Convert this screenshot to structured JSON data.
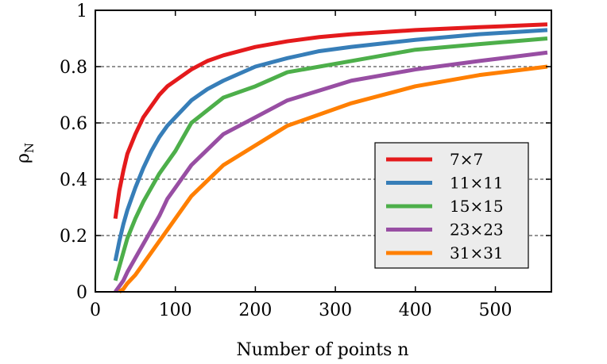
{
  "chart_data": {
    "type": "line",
    "title": "",
    "xlabel": "Number of points n",
    "ylabel_main": "ρ",
    "ylabel_sub": "N",
    "xlim": [
      0,
      570
    ],
    "ylim": [
      0,
      1
    ],
    "xticks": [
      "0",
      "100",
      "200",
      "300",
      "400",
      "500"
    ],
    "xtick_values": [
      0,
      100,
      200,
      300,
      400,
      500
    ],
    "yticks": [
      "0",
      "0.2",
      "0.4",
      "0.6",
      "0.8",
      "1"
    ],
    "ytick_values": [
      0,
      0.2,
      0.4,
      0.6,
      0.8,
      1
    ],
    "grid": "horizontal dashed",
    "legend_position": "lower-right",
    "series": [
      {
        "name": "7×7",
        "color": "#e41a1c",
        "x": [
          25,
          30,
          35,
          40,
          50,
          60,
          70,
          80,
          90,
          100,
          120,
          140,
          160,
          200,
          240,
          280,
          320,
          400,
          480,
          565
        ],
        "y": [
          0.26,
          0.36,
          0.43,
          0.49,
          0.56,
          0.62,
          0.66,
          0.7,
          0.73,
          0.75,
          0.79,
          0.82,
          0.84,
          0.87,
          0.89,
          0.905,
          0.915,
          0.93,
          0.94,
          0.95
        ]
      },
      {
        "name": "11×11",
        "color": "#377eb8",
        "x": [
          25,
          30,
          35,
          40,
          50,
          60,
          70,
          80,
          90,
          100,
          120,
          140,
          160,
          200,
          240,
          280,
          320,
          400,
          480,
          565
        ],
        "y": [
          0.11,
          0.18,
          0.24,
          0.29,
          0.37,
          0.44,
          0.5,
          0.55,
          0.59,
          0.62,
          0.68,
          0.72,
          0.75,
          0.8,
          0.83,
          0.855,
          0.87,
          0.895,
          0.915,
          0.93
        ]
      },
      {
        "name": "15×15",
        "color": "#4daf4a",
        "x": [
          25,
          30,
          35,
          40,
          50,
          60,
          70,
          80,
          90,
          100,
          120,
          160,
          200,
          240,
          320,
          400,
          480,
          565
        ],
        "y": [
          0.04,
          0.09,
          0.14,
          0.19,
          0.26,
          0.32,
          0.37,
          0.42,
          0.46,
          0.5,
          0.6,
          0.69,
          0.73,
          0.78,
          0.82,
          0.86,
          0.88,
          0.9
        ]
      },
      {
        "name": "23×23",
        "color": "#984ea3",
        "x": [
          25,
          30,
          35,
          40,
          50,
          60,
          70,
          80,
          90,
          100,
          120,
          160,
          200,
          240,
          320,
          400,
          480,
          565
        ],
        "y": [
          0.0,
          0.02,
          0.04,
          0.07,
          0.12,
          0.17,
          0.22,
          0.27,
          0.33,
          0.37,
          0.45,
          0.56,
          0.62,
          0.68,
          0.75,
          0.79,
          0.82,
          0.85
        ]
      },
      {
        "name": "31×31",
        "color": "#ff7f00",
        "x": [
          30,
          35,
          40,
          50,
          60,
          70,
          80,
          90,
          100,
          120,
          160,
          200,
          240,
          320,
          400,
          480,
          565
        ],
        "y": [
          0.0,
          0.01,
          0.03,
          0.06,
          0.1,
          0.14,
          0.18,
          0.22,
          0.26,
          0.34,
          0.45,
          0.52,
          0.59,
          0.67,
          0.73,
          0.77,
          0.8
        ]
      }
    ]
  }
}
